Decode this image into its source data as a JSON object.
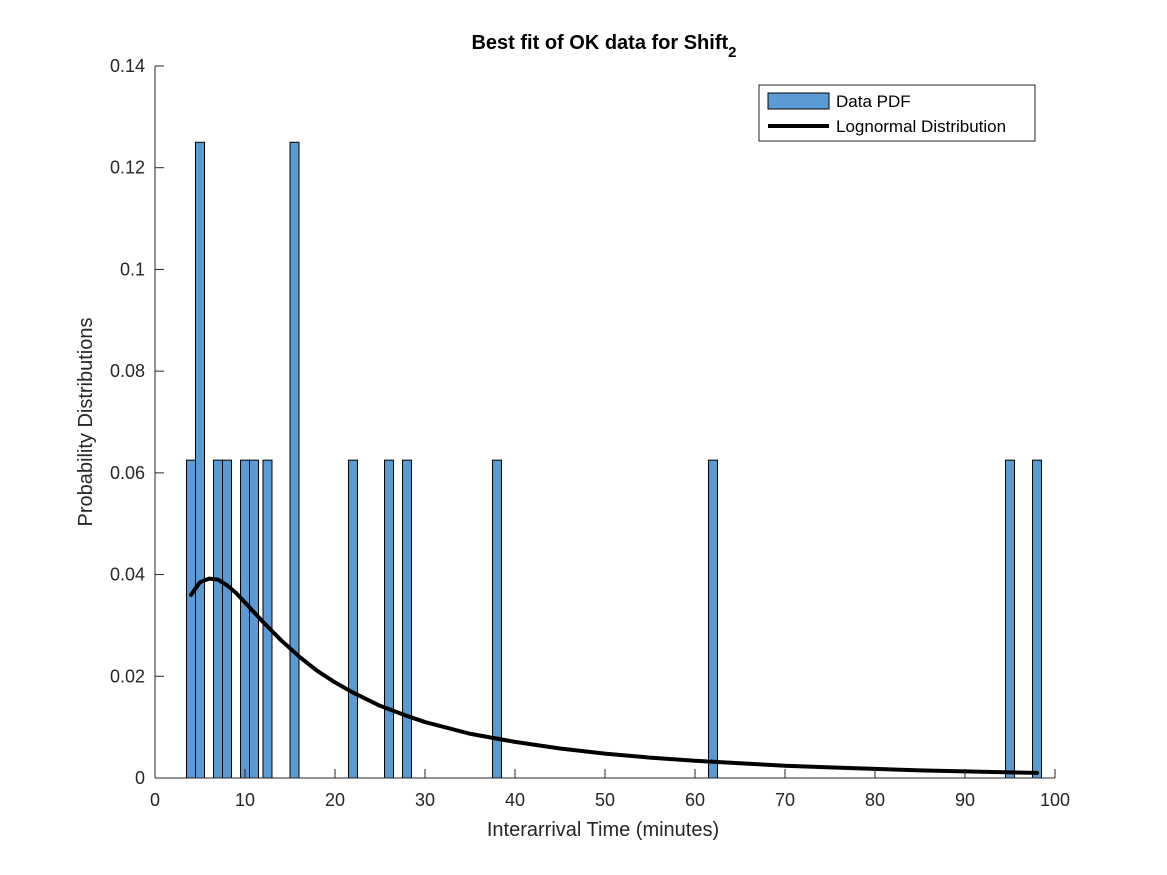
{
  "chart_data": {
    "type": "bar",
    "title": "Best fit of OK data for Shift",
    "title_subscript": "2",
    "xlabel": "Interarrival Time (minutes)",
    "ylabel": "Probability Distributions",
    "xlim": [
      0,
      100
    ],
    "ylim": [
      0,
      0.14
    ],
    "xticks": [
      0,
      10,
      20,
      30,
      40,
      50,
      60,
      70,
      80,
      90,
      100
    ],
    "yticks": [
      0,
      0.02,
      0.04,
      0.06,
      0.08,
      0.1,
      0.12,
      0.14
    ],
    "ytick_labels": [
      "0",
      "0.02",
      "0.04",
      "0.06",
      "0.08",
      "0.1",
      "0.12",
      "0.14"
    ],
    "bin_width": 1,
    "bars": [
      {
        "x": 4,
        "value": 0.0625
      },
      {
        "x": 5,
        "value": 0.125
      },
      {
        "x": 7,
        "value": 0.0625
      },
      {
        "x": 8,
        "value": 0.0625
      },
      {
        "x": 10,
        "value": 0.0625
      },
      {
        "x": 11,
        "value": 0.0625
      },
      {
        "x": 12.5,
        "value": 0.0625
      },
      {
        "x": 15.5,
        "value": 0.125
      },
      {
        "x": 22,
        "value": 0.0625
      },
      {
        "x": 26,
        "value": 0.0625
      },
      {
        "x": 28,
        "value": 0.0625
      },
      {
        "x": 38,
        "value": 0.0625
      },
      {
        "x": 62,
        "value": 0.0625
      },
      {
        "x": 95,
        "value": 0.0625
      },
      {
        "x": 98,
        "value": 0.0625
      }
    ],
    "series": [
      {
        "name": "Data PDF",
        "type": "bar",
        "color": "#5B9BD5",
        "edge_color": "#000000"
      },
      {
        "name": "Lognormal Distribution",
        "type": "line",
        "color": "#000000",
        "x": [
          4,
          5,
          6,
          7,
          8,
          9,
          10,
          12,
          14,
          16,
          18,
          20,
          22,
          25,
          28,
          30,
          35,
          40,
          45,
          50,
          55,
          60,
          65,
          70,
          75,
          80,
          85,
          90,
          95,
          98
        ],
        "y": [
          0.036,
          0.0385,
          0.0392,
          0.039,
          0.0379,
          0.0364,
          0.0345,
          0.0307,
          0.0271,
          0.0239,
          0.0211,
          0.0188,
          0.0168,
          0.0142,
          0.0122,
          0.011,
          0.0087,
          0.0071,
          0.0058,
          0.0048,
          0.004,
          0.0034,
          0.0029,
          0.0024,
          0.0021,
          0.0018,
          0.0015,
          0.0013,
          0.0011,
          0.001
        ]
      }
    ],
    "legend_position": "top-right"
  }
}
